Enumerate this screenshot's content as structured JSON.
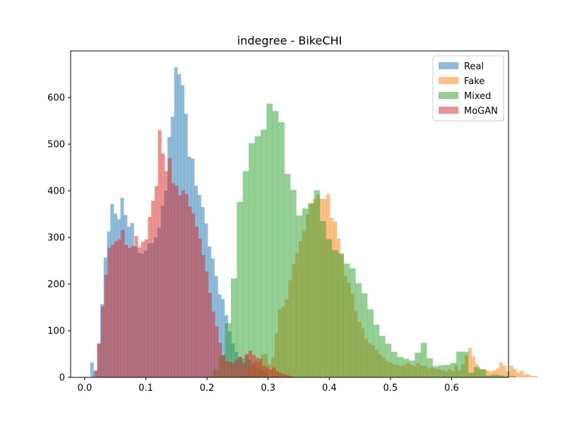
{
  "chart_data": {
    "type": "histogram",
    "title": "indegree - BikeCHI",
    "xlabel": "",
    "ylabel": "",
    "xlim": [
      -0.023,
      0.693
    ],
    "ylim": [
      0,
      700
    ],
    "xticks": [
      0.0,
      0.1,
      0.2,
      0.3,
      0.4,
      0.5,
      0.6
    ],
    "xtick_labels": [
      "0.0",
      "0.1",
      "0.2",
      "0.3",
      "0.4",
      "0.5",
      "0.6"
    ],
    "yticks": [
      0,
      100,
      200,
      300,
      400,
      500,
      600
    ],
    "ytick_labels": [
      "0",
      "100",
      "200",
      "300",
      "400",
      "500",
      "600"
    ],
    "grid": false,
    "legend": "top-right",
    "bar_alpha": 0.5,
    "series": [
      {
        "name": "Real",
        "color": "#1f77b4",
        "x_start": 0.009,
        "bin_width": 0.00549,
        "values": [
          32,
          13,
          72,
          157,
          257,
          313,
          372,
          351,
          339,
          385,
          348,
          323,
          331,
          281,
          267,
          265,
          272,
          287,
          288,
          300,
          321,
          368,
          400,
          515,
          559,
          665,
          650,
          627,
          565,
          473,
          469,
          411,
          391,
          365,
          330,
          281,
          255,
          217,
          178,
          168,
          133,
          99,
          73,
          55,
          44,
          40,
          47,
          38,
          29,
          21,
          19,
          15,
          12
        ]
      },
      {
        "name": "Fake",
        "color": "#ff7f0e",
        "x_start": 0.254,
        "bin_width": 0.00565,
        "values": [
          5,
          3,
          20,
          22,
          35,
          33,
          49,
          50,
          28,
          43,
          95,
          146,
          152,
          167,
          208,
          243,
          267,
          292,
          314,
          349,
          373,
          382,
          391,
          383,
          382,
          393,
          342,
          334,
          298,
          263,
          217,
          203,
          179,
          142,
          119,
          105,
          83,
          73,
          69,
          60,
          49,
          43,
          35,
          32,
          28,
          27,
          25,
          27,
          31,
          27,
          25,
          31,
          25,
          25,
          19,
          22,
          19,
          18,
          16,
          12,
          18,
          14,
          26,
          15,
          28,
          47,
          63,
          45,
          29,
          18,
          18,
          15,
          12,
          15,
          19,
          32,
          25,
          13,
          25,
          18,
          10,
          14,
          6,
          6,
          3,
          3
        ]
      },
      {
        "name": "Mixed",
        "color": "#2ca02c",
        "x_start": 0.21,
        "bin_width": 0.0097,
        "values": [
          17,
          46,
          116,
          212,
          376,
          442,
          502,
          517,
          531,
          587,
          571,
          547,
          436,
          402,
          347,
          362,
          373,
          401,
          335,
          296,
          273,
          266,
          244,
          234,
          202,
          180,
          146,
          113,
          89,
          72,
          55,
          44,
          40,
          36,
          53,
          74,
          41,
          24,
          26,
          27,
          31,
          55,
          55,
          10,
          22,
          17,
          4,
          6,
          4,
          2,
          3
        ]
      },
      {
        "name": "MoGAN",
        "color": "#d62728",
        "x_start": 0.01,
        "bin_width": 0.00549,
        "values": [
          0,
          15,
          73,
          152,
          220,
          278,
          284,
          292,
          296,
          316,
          284,
          278,
          282,
          303,
          279,
          291,
          296,
          344,
          379,
          410,
          530,
          480,
          442,
          470,
          416,
          411,
          390,
          401,
          393,
          366,
          351,
          323,
          297,
          262,
          227,
          181,
          141,
          109,
          74,
          48,
          35,
          33,
          31,
          38,
          44,
          31,
          50,
          57,
          48,
          42,
          40,
          25,
          22,
          17,
          21,
          13,
          10,
          7,
          5,
          3
        ]
      }
    ]
  }
}
